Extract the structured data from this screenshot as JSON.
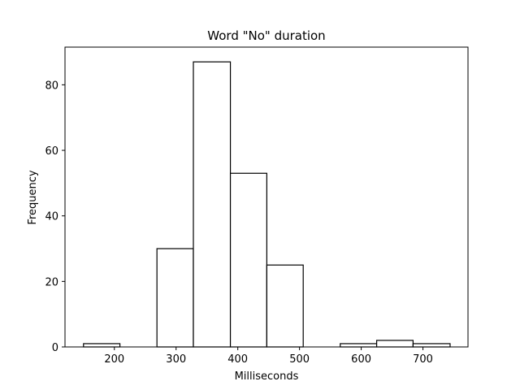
{
  "chart_data": {
    "type": "bar",
    "title": "Word \"No\" duration",
    "xlabel": "Milliseconds",
    "ylabel": "Frequency",
    "bin_edges": [
      150,
      209,
      269,
      328,
      388,
      447,
      506,
      566,
      625,
      684,
      744
    ],
    "values": [
      1,
      0,
      30,
      87,
      53,
      25,
      0,
      1,
      2,
      1
    ],
    "xlim": [
      120,
      773
    ],
    "ylim": [
      0,
      91.5
    ],
    "xticks": [
      200,
      300,
      400,
      500,
      600,
      700
    ],
    "yticks": [
      0,
      20,
      40,
      60,
      80
    ],
    "grid": false,
    "colors": {
      "bar_fill": "#ffffff",
      "bar_edge": "#000000"
    }
  }
}
